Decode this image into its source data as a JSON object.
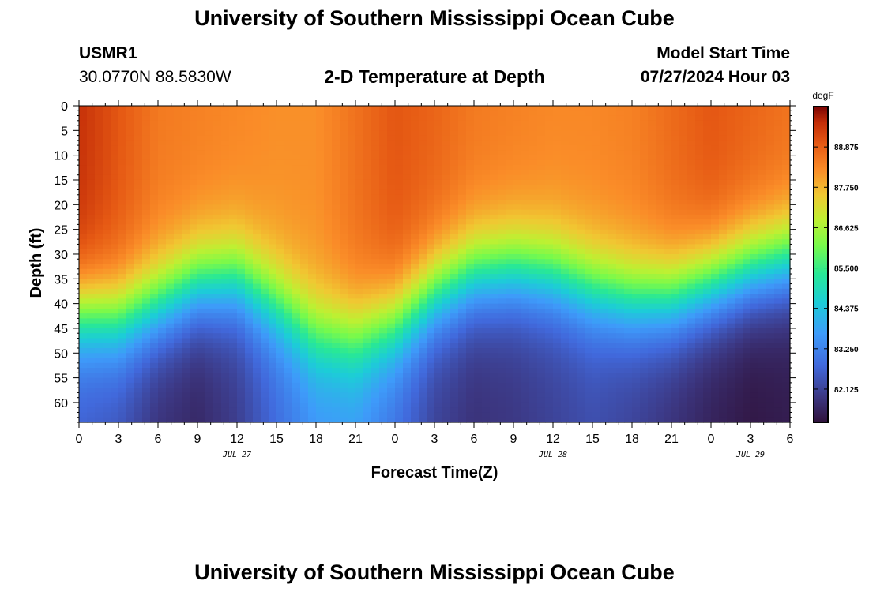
{
  "page": {
    "title_top": "University of Southern Mississippi Ocean Cube",
    "title_bottom": "University of Southern Mississippi Ocean Cube",
    "station_id": "USMR1",
    "station_coords": "30.0770N  88.5830W",
    "plot_title": "2-D Temperature at Depth",
    "model_start_label": "Model Start Time",
    "model_start_value": "07/27/2024 Hour 03"
  },
  "chart_data": {
    "type": "heatmap",
    "title": "2-D Temperature at Depth",
    "xlabel": "Forecast Time(Z)",
    "ylabel": "Depth (ft)",
    "x_tick_labels": [
      "0",
      "3",
      "6",
      "9",
      "12",
      "15",
      "18",
      "21",
      "0",
      "3",
      "6",
      "9",
      "12",
      "15",
      "18",
      "21",
      "0",
      "3",
      "6"
    ],
    "x_range_hours": [
      0,
      54
    ],
    "date_labels": [
      {
        "text": "JUL 27",
        "hour": 12
      },
      {
        "text": "JUL 28",
        "hour": 36
      },
      {
        "text": "JUL 29",
        "hour": 51
      }
    ],
    "y_ticks": [
      0,
      5,
      10,
      15,
      20,
      25,
      30,
      35,
      40,
      45,
      50,
      55,
      60
    ],
    "y_range_ft": [
      0,
      64
    ],
    "colorbar": {
      "unit": "degF",
      "range": [
        81.2,
        90.0
      ],
      "tick_values": [
        82.125,
        83.25,
        84.375,
        85.5,
        86.625,
        87.75,
        88.875
      ],
      "tick_labels": [
        "82.125",
        "83.250",
        "84.375",
        "85.500",
        "86.625",
        "87.750",
        "88.875"
      ]
    },
    "thermocline": {
      "hours": [
        0,
        3,
        6,
        9,
        12,
        15,
        18,
        21,
        24,
        27,
        30,
        33,
        36,
        39,
        42,
        45,
        48,
        51,
        54
      ],
      "center_depth_ft": [
        42,
        43,
        40,
        36,
        35,
        40,
        46,
        47,
        44,
        38,
        34,
        33,
        34,
        37,
        39,
        39,
        36,
        33,
        31
      ]
    },
    "surface_temp_degF": {
      "hours": [
        0,
        3,
        6,
        9,
        12,
        15,
        18,
        21,
        24,
        27,
        30,
        33,
        36,
        39,
        42,
        45,
        48,
        51,
        54
      ],
      "values": [
        89.5,
        89.0,
        88.5,
        88.4,
        88.3,
        88.2,
        88.2,
        88.6,
        89.0,
        88.8,
        88.5,
        88.4,
        88.3,
        88.3,
        88.4,
        88.7,
        89.0,
        88.8,
        88.6
      ]
    },
    "bottom_temp_degF": {
      "hours": [
        0,
        3,
        6,
        9,
        12,
        15,
        18,
        21,
        24,
        27,
        30,
        33,
        36,
        39,
        42,
        45,
        48,
        51,
        54
      ],
      "values": [
        82.6,
        82.4,
        81.8,
        81.6,
        82.0,
        82.8,
        83.5,
        83.6,
        82.9,
        82.1,
        81.8,
        81.9,
        82.1,
        82.3,
        82.1,
        81.8,
        81.5,
        81.3,
        81.4
      ]
    }
  }
}
